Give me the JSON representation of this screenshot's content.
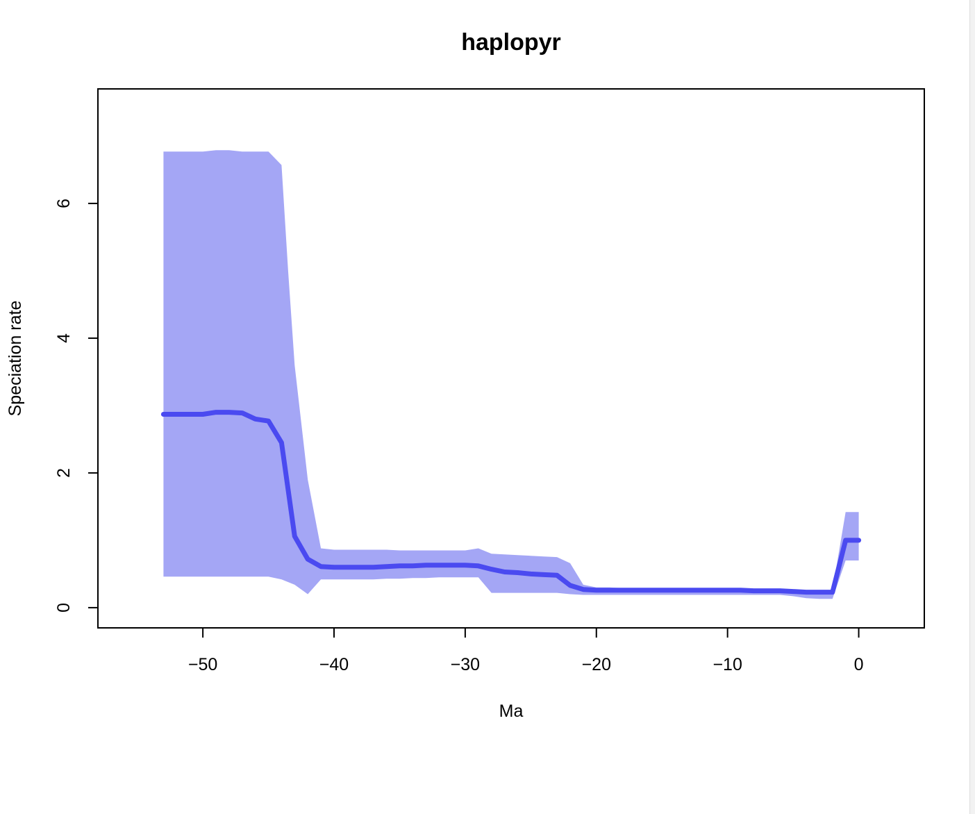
{
  "chart_data": {
    "type": "line",
    "title": "haplopyr",
    "xlabel": "Ma",
    "ylabel": "Speciation rate",
    "xlim": [
      -58,
      5
    ],
    "ylim": [
      -0.3,
      7.7
    ],
    "x_ticks": [
      -50,
      -40,
      -30,
      -20,
      -10,
      0
    ],
    "x_tick_labels": [
      "−50",
      "−40",
      "−30",
      "−20",
      "−10",
      "0"
    ],
    "y_ticks": [
      0,
      2,
      4,
      6
    ],
    "y_tick_labels": [
      "0",
      "2",
      "4",
      "6"
    ],
    "grid": false,
    "legend": "none",
    "colors": {
      "line": "#4a4af0",
      "band": "#a4a6f5",
      "axis": "#000000"
    },
    "series": [
      {
        "role": "mean",
        "x": [
          -53,
          -52,
          -51,
          -50,
          -49,
          -48,
          -47,
          -46,
          -45,
          -44,
          -43,
          -42,
          -41,
          -40,
          -39,
          -38,
          -37,
          -36,
          -35,
          -34,
          -33,
          -32,
          -31,
          -30,
          -29,
          -28,
          -27,
          -26,
          -25,
          -24,
          -23,
          -22,
          -21,
          -20,
          -19,
          -18,
          -17,
          -16,
          -15,
          -14,
          -13,
          -12,
          -11,
          -10,
          -9,
          -8,
          -7,
          -6,
          -5,
          -4,
          -3,
          -2,
          -1,
          0
        ],
        "values": [
          2.87,
          2.87,
          2.87,
          2.87,
          2.9,
          2.9,
          2.89,
          2.8,
          2.77,
          2.45,
          1.06,
          0.72,
          0.61,
          0.6,
          0.6,
          0.6,
          0.6,
          0.61,
          0.62,
          0.62,
          0.63,
          0.63,
          0.63,
          0.63,
          0.62,
          0.57,
          0.53,
          0.52,
          0.5,
          0.49,
          0.48,
          0.33,
          0.27,
          0.26,
          0.26,
          0.26,
          0.26,
          0.26,
          0.26,
          0.26,
          0.26,
          0.26,
          0.26,
          0.26,
          0.26,
          0.25,
          0.25,
          0.25,
          0.24,
          0.23,
          0.23,
          0.23,
          1.0,
          1.0
        ]
      },
      {
        "role": "upper",
        "x": [
          -53,
          -52,
          -51,
          -50,
          -49,
          -48,
          -47,
          -46,
          -45,
          -44,
          -43.5,
          -43,
          -42,
          -41,
          -40,
          -39,
          -38,
          -37,
          -36,
          -35,
          -34,
          -33,
          -32,
          -31,
          -30,
          -29,
          -28,
          -27,
          -26,
          -25,
          -24,
          -23,
          -22,
          -21,
          -20,
          -19,
          -18,
          -17,
          -16,
          -15,
          -14,
          -13,
          -12,
          -11,
          -10,
          -9,
          -8,
          -7,
          -6,
          -5,
          -4,
          -3,
          -2,
          -1,
          0
        ],
        "values": [
          6.77,
          6.77,
          6.77,
          6.77,
          6.79,
          6.79,
          6.77,
          6.77,
          6.77,
          6.57,
          5.0,
          3.6,
          1.9,
          0.88,
          0.86,
          0.86,
          0.86,
          0.86,
          0.86,
          0.85,
          0.85,
          0.85,
          0.85,
          0.85,
          0.85,
          0.88,
          0.8,
          0.79,
          0.78,
          0.77,
          0.76,
          0.75,
          0.66,
          0.34,
          0.3,
          0.3,
          0.29,
          0.29,
          0.29,
          0.29,
          0.29,
          0.29,
          0.29,
          0.29,
          0.29,
          0.29,
          0.28,
          0.27,
          0.27,
          0.26,
          0.26,
          0.26,
          0.26,
          1.42,
          1.42
        ]
      },
      {
        "role": "lower",
        "x": [
          -53,
          -52,
          -51,
          -50,
          -49,
          -48,
          -47,
          -46,
          -45,
          -44,
          -43,
          -42,
          -41,
          -40,
          -39,
          -38,
          -37,
          -36,
          -35,
          -34,
          -33,
          -32,
          -31,
          -30,
          -29,
          -28,
          -27,
          -26,
          -25,
          -24,
          -23,
          -22,
          -21,
          -20,
          -19,
          -18,
          -17,
          -16,
          -15,
          -14,
          -13,
          -12,
          -11,
          -10,
          -9,
          -8,
          -7,
          -6,
          -5,
          -4,
          -3,
          -2,
          -1,
          0
        ],
        "values": [
          0.46,
          0.46,
          0.46,
          0.46,
          0.46,
          0.46,
          0.46,
          0.46,
          0.46,
          0.42,
          0.34,
          0.2,
          0.42,
          0.42,
          0.42,
          0.42,
          0.42,
          0.43,
          0.43,
          0.44,
          0.44,
          0.45,
          0.45,
          0.45,
          0.45,
          0.22,
          0.22,
          0.22,
          0.22,
          0.22,
          0.22,
          0.2,
          0.19,
          0.19,
          0.19,
          0.19,
          0.19,
          0.19,
          0.19,
          0.19,
          0.19,
          0.19,
          0.19,
          0.19,
          0.19,
          0.19,
          0.19,
          0.19,
          0.17,
          0.14,
          0.13,
          0.13,
          0.7,
          0.7
        ]
      }
    ]
  }
}
